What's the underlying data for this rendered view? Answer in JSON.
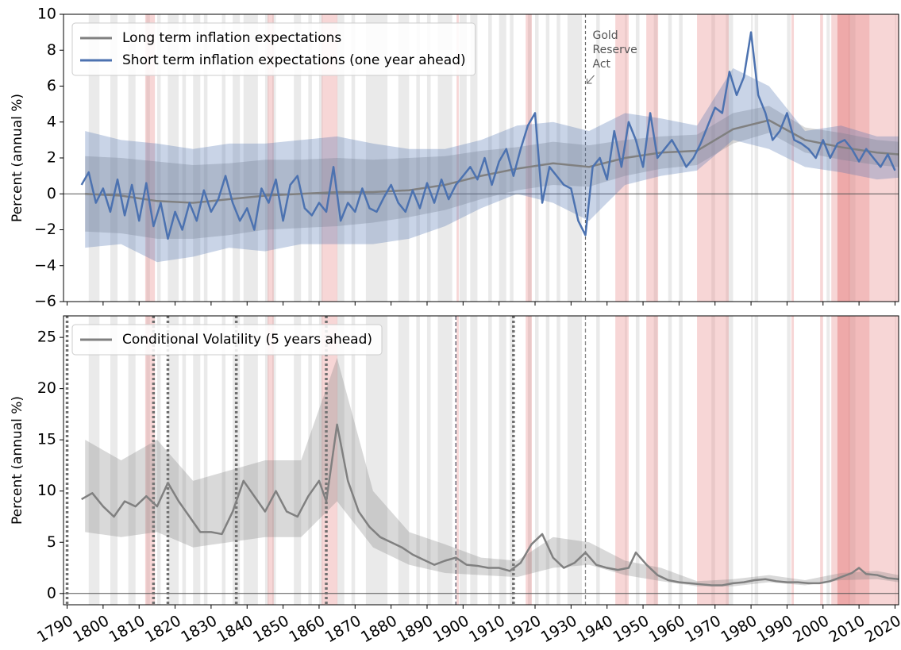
{
  "chart_data": [
    {
      "type": "line",
      "ylabel": "Percent (annual %)",
      "xlim": [
        1789,
        2021
      ],
      "ylim": [
        -6,
        10
      ],
      "yticks": [
        {
          "value": -6,
          "label": "−6"
        },
        {
          "value": -4,
          "label": "−4"
        },
        {
          "value": -2,
          "label": "−2"
        },
        0,
        2,
        4,
        6,
        8,
        10
      ],
      "hline": 0,
      "legend": "upper left",
      "annotation": {
        "lines": [
          "Gold",
          "Reserve",
          "Act"
        ],
        "x": 1934
      },
      "event_lines": [
        1934
      ],
      "recessions": [
        [
          1796,
          1799
        ],
        [
          1802,
          1804
        ],
        [
          1807,
          1809
        ],
        [
          1812,
          1813
        ],
        [
          1815,
          1816
        ],
        [
          1818,
          1821
        ],
        [
          1822,
          1823
        ],
        [
          1825,
          1827
        ],
        [
          1828,
          1829
        ],
        [
          1833,
          1834
        ],
        [
          1836,
          1838
        ],
        [
          1839,
          1843
        ],
        [
          1845,
          1846
        ],
        [
          1847,
          1848
        ],
        [
          1853,
          1855
        ],
        [
          1857,
          1858
        ],
        [
          1860,
          1861
        ],
        [
          1865,
          1867
        ],
        [
          1869,
          1870
        ],
        [
          1873,
          1879
        ],
        [
          1882,
          1885
        ],
        [
          1887,
          1888
        ],
        [
          1890,
          1891
        ],
        [
          1893,
          1897
        ],
        [
          1899,
          1901
        ],
        [
          1902,
          1904
        ],
        [
          1907,
          1908
        ],
        [
          1910,
          1912
        ],
        [
          1913,
          1914
        ],
        [
          1918,
          1919
        ],
        [
          1920,
          1921
        ],
        [
          1923,
          1924
        ],
        [
          1926,
          1927
        ],
        [
          1929,
          1933
        ],
        [
          1937,
          1938
        ],
        [
          1945,
          1945.5
        ],
        [
          1948,
          1949
        ],
        [
          1953,
          1954
        ],
        [
          1957,
          1958
        ],
        [
          1960,
          1961
        ],
        [
          1969,
          1970
        ],
        [
          1973,
          1975
        ],
        [
          1980,
          1980.5
        ],
        [
          1981,
          1982
        ],
        [
          1990,
          1991
        ],
        [
          2001,
          2001.9
        ],
        [
          2007,
          2009
        ],
        [
          2020,
          2020.3
        ]
      ],
      "wars": [
        [
          1811.7,
          1814.4
        ],
        [
          1845.7,
          1847.4
        ],
        [
          1860.7,
          1865.1
        ],
        [
          1898.2,
          1898.8
        ],
        [
          1917.4,
          1919.1
        ],
        [
          1942.3,
          1946
        ],
        [
          1950.9,
          1954.2
        ],
        [
          1965,
          1973.8
        ],
        [
          1991.2,
          1991.9
        ],
        [
          1999.2,
          2000
        ],
        [
          2002.3,
          2021
        ],
        [
          2004,
          2012.9
        ],
        [
          2004,
          2007.5
        ]
      ],
      "series": [
        {
          "name": "Long term inflation expectations",
          "color": "#808080",
          "x": [
            1795,
            1805,
            1815,
            1825,
            1835,
            1845,
            1855,
            1865,
            1875,
            1885,
            1895,
            1905,
            1915,
            1925,
            1935,
            1945,
            1955,
            1965,
            1975,
            1985,
            1995,
            2005,
            2015,
            2021
          ],
          "values": [
            0,
            -0.1,
            -0.4,
            -0.5,
            -0.3,
            -0.1,
            0,
            0.1,
            0.1,
            0.2,
            0.5,
            1.0,
            1.4,
            1.7,
            1.5,
            2.0,
            2.3,
            2.4,
            3.6,
            4.1,
            3.0,
            2.6,
            2.3,
            2.2
          ],
          "band_x": [
            1795,
            1805,
            1815,
            1825,
            1835,
            1845,
            1855,
            1865,
            1875,
            1885,
            1895,
            1905,
            1915,
            1925,
            1935,
            1945,
            1955,
            1965,
            1975,
            1985,
            1995,
            2005,
            2015,
            2021
          ],
          "band_lower": [
            -2.1,
            -2.2,
            -2.5,
            -2.5,
            -2.3,
            -2.0,
            -1.9,
            -1.8,
            -1.6,
            -1.3,
            -0.9,
            -0.3,
            0.2,
            0.5,
            0.4,
            1.0,
            1.4,
            1.6,
            2.8,
            3.4,
            2.3,
            1.9,
            1.6,
            1.5
          ],
          "band_upper": [
            2.1,
            2.0,
            1.8,
            1.6,
            1.7,
            1.9,
            1.9,
            2.0,
            1.9,
            2.0,
            2.1,
            2.4,
            2.6,
            2.9,
            2.7,
            3.0,
            3.2,
            3.3,
            4.5,
            4.9,
            3.7,
            3.4,
            3.0,
            2.9
          ]
        },
        {
          "name": "Short term inflation expectations (one year ahead)",
          "color": "#4c72b0",
          "x": [
            1794,
            1796,
            1798,
            1800,
            1802,
            1804,
            1806,
            1808,
            1810,
            1812,
            1814,
            1816,
            1818,
            1820,
            1822,
            1824,
            1826,
            1828,
            1830,
            1832,
            1834,
            1836,
            1838,
            1840,
            1842,
            1844,
            1846,
            1848,
            1850,
            1852,
            1854,
            1856,
            1858,
            1860,
            1862,
            1864,
            1866,
            1868,
            1870,
            1872,
            1874,
            1876,
            1878,
            1880,
            1882,
            1884,
            1886,
            1888,
            1890,
            1892,
            1894,
            1896,
            1898,
            1900,
            1902,
            1904,
            1906,
            1908,
            1910,
            1912,
            1914,
            1916,
            1918,
            1920,
            1922,
            1924,
            1926,
            1928,
            1930,
            1932,
            1934,
            1936,
            1938,
            1940,
            1942,
            1944,
            1946,
            1948,
            1950,
            1952,
            1954,
            1956,
            1958,
            1960,
            1962,
            1964,
            1966,
            1968,
            1970,
            1972,
            1974,
            1976,
            1978,
            1980,
            1982,
            1984,
            1986,
            1988,
            1990,
            1992,
            1994,
            1996,
            1998,
            2000,
            2002,
            2004,
            2006,
            2008,
            2010,
            2012,
            2014,
            2016,
            2018,
            2020
          ],
          "values": [
            0.5,
            1.2,
            -0.5,
            0.3,
            -1.0,
            0.8,
            -1.2,
            0.5,
            -1.5,
            0.6,
            -1.8,
            -0.5,
            -2.5,
            -1.0,
            -2.0,
            -0.5,
            -1.5,
            0.2,
            -1.0,
            -0.3,
            1.0,
            -0.5,
            -1.5,
            -0.8,
            -2.0,
            0.3,
            -0.5,
            0.8,
            -1.5,
            0.5,
            1.0,
            -0.8,
            -1.2,
            -0.5,
            -1.0,
            1.5,
            -1.5,
            -0.5,
            -1.0,
            0.3,
            -0.8,
            -1.0,
            -0.2,
            0.5,
            -0.5,
            -1.0,
            0.2,
            -0.8,
            0.6,
            -0.5,
            0.8,
            -0.3,
            0.5,
            1.0,
            1.5,
            0.8,
            2.0,
            0.5,
            1.8,
            2.5,
            1.0,
            2.5,
            3.8,
            4.5,
            -0.5,
            1.5,
            1.0,
            0.5,
            0.3,
            -1.5,
            -2.3,
            1.5,
            2.0,
            0.8,
            3.5,
            1.5,
            4.0,
            3.0,
            1.5,
            4.5,
            2.0,
            2.5,
            3.0,
            2.3,
            1.5,
            2.0,
            2.8,
            3.8,
            4.8,
            4.5,
            6.8,
            5.5,
            6.5,
            9.0,
            5.5,
            4.5,
            3.0,
            3.5,
            4.5,
            3.0,
            2.8,
            2.5,
            2.0,
            3.0,
            2.0,
            2.8,
            3.0,
            2.5,
            1.8,
            2.5,
            2.0,
            1.5,
            2.2,
            1.3
          ],
          "band_x": [
            1795,
            1805,
            1815,
            1825,
            1835,
            1845,
            1855,
            1865,
            1875,
            1885,
            1895,
            1905,
            1915,
            1925,
            1935,
            1945,
            1955,
            1965,
            1975,
            1985,
            1995,
            2005,
            2015,
            2021
          ],
          "band_lower": [
            -3.0,
            -2.8,
            -3.8,
            -3.5,
            -3.0,
            -3.2,
            -2.8,
            -2.8,
            -2.8,
            -2.5,
            -1.8,
            -0.8,
            0.0,
            -0.5,
            -1.5,
            0.5,
            1.0,
            1.3,
            3.0,
            2.5,
            1.5,
            1.2,
            0.8,
            0.9
          ],
          "band_upper": [
            3.5,
            3.0,
            2.8,
            2.5,
            2.8,
            2.8,
            3.0,
            3.2,
            2.8,
            2.5,
            2.5,
            3.0,
            3.8,
            4.0,
            3.5,
            4.5,
            4.2,
            3.8,
            7.0,
            6.0,
            3.5,
            3.8,
            3.2,
            3.2
          ]
        }
      ]
    },
    {
      "type": "line",
      "ylabel": "Percent (annual %)",
      "xlim": [
        1789,
        2021
      ],
      "ylim": [
        -1.1,
        27.1
      ],
      "yticks": [
        0,
        5,
        10,
        15,
        20,
        25
      ],
      "hline": 0,
      "legend": "upper left",
      "xticks": [
        1790,
        1800,
        1810,
        1820,
        1830,
        1840,
        1850,
        1860,
        1870,
        1880,
        1890,
        1900,
        1910,
        1920,
        1930,
        1940,
        1950,
        1960,
        1970,
        1980,
        1990,
        2000,
        2010,
        2020
      ],
      "dotted_lines": [
        1790,
        1814,
        1818,
        1837,
        1862,
        1914
      ],
      "dashed_lines": [
        1898,
        1934
      ],
      "series": [
        {
          "name": "Conditional Volatility (5 years ahead)",
          "color": "#808080",
          "x": [
            1794,
            1797,
            1800,
            1803,
            1806,
            1809,
            1812,
            1815,
            1818,
            1821,
            1824,
            1827,
            1830,
            1833,
            1836,
            1839,
            1842,
            1845,
            1848,
            1851,
            1854,
            1857,
            1860,
            1862,
            1865,
            1868,
            1871,
            1874,
            1877,
            1880,
            1883,
            1886,
            1889,
            1892,
            1895,
            1898,
            1901,
            1904,
            1907,
            1910,
            1913,
            1916,
            1919,
            1922,
            1925,
            1928,
            1931,
            1934,
            1937,
            1940,
            1943,
            1946,
            1948,
            1951,
            1954,
            1957,
            1960,
            1963,
            1966,
            1969,
            1972,
            1975,
            1978,
            1981,
            1984,
            1987,
            1990,
            1993,
            1996,
            1999,
            2002,
            2005,
            2008,
            2010,
            2012,
            2015,
            2018,
            2021
          ],
          "values": [
            9.2,
            9.8,
            8.5,
            7.5,
            9.0,
            8.5,
            9.5,
            8.5,
            10.8,
            9.0,
            7.5,
            6.0,
            6.0,
            5.8,
            8.0,
            11.0,
            9.5,
            8.0,
            10.0,
            8.0,
            7.5,
            9.5,
            11.0,
            9.0,
            16.5,
            11.0,
            8.0,
            6.5,
            5.5,
            5.0,
            4.5,
            3.8,
            3.3,
            2.8,
            3.2,
            3.5,
            2.8,
            2.7,
            2.5,
            2.5,
            2.2,
            3.0,
            4.8,
            5.8,
            3.5,
            2.5,
            3.0,
            4.0,
            2.8,
            2.5,
            2.3,
            2.5,
            4.0,
            2.8,
            1.8,
            1.3,
            1.1,
            1.0,
            0.9,
            0.8,
            0.8,
            1.0,
            1.1,
            1.3,
            1.4,
            1.2,
            1.1,
            1.1,
            1.0,
            1.0,
            1.2,
            1.6,
            2.0,
            2.5,
            1.9,
            1.8,
            1.5,
            1.4
          ],
          "band_x": [
            1795,
            1805,
            1815,
            1825,
            1835,
            1845,
            1855,
            1865,
            1875,
            1885,
            1895,
            1905,
            1915,
            1925,
            1935,
            1945,
            1955,
            1965,
            1975,
            1985,
            1995,
            2005,
            2015,
            2021
          ],
          "band_lower": [
            6,
            5.5,
            6,
            4.5,
            5,
            5.5,
            5.5,
            9,
            4.5,
            2.8,
            2,
            1.8,
            1.6,
            2.5,
            2.8,
            1.8,
            1.2,
            0.7,
            0.7,
            1.1,
            0.8,
            1.3,
            1.4,
            1.1
          ],
          "band_upper": [
            15,
            13,
            15,
            11,
            12,
            13,
            13,
            23,
            10,
            6,
            4.8,
            3.5,
            3.2,
            5.5,
            5,
            3.2,
            2.5,
            1.2,
            1.4,
            1.8,
            1.3,
            2,
            2.2,
            1.8
          ]
        }
      ]
    }
  ]
}
